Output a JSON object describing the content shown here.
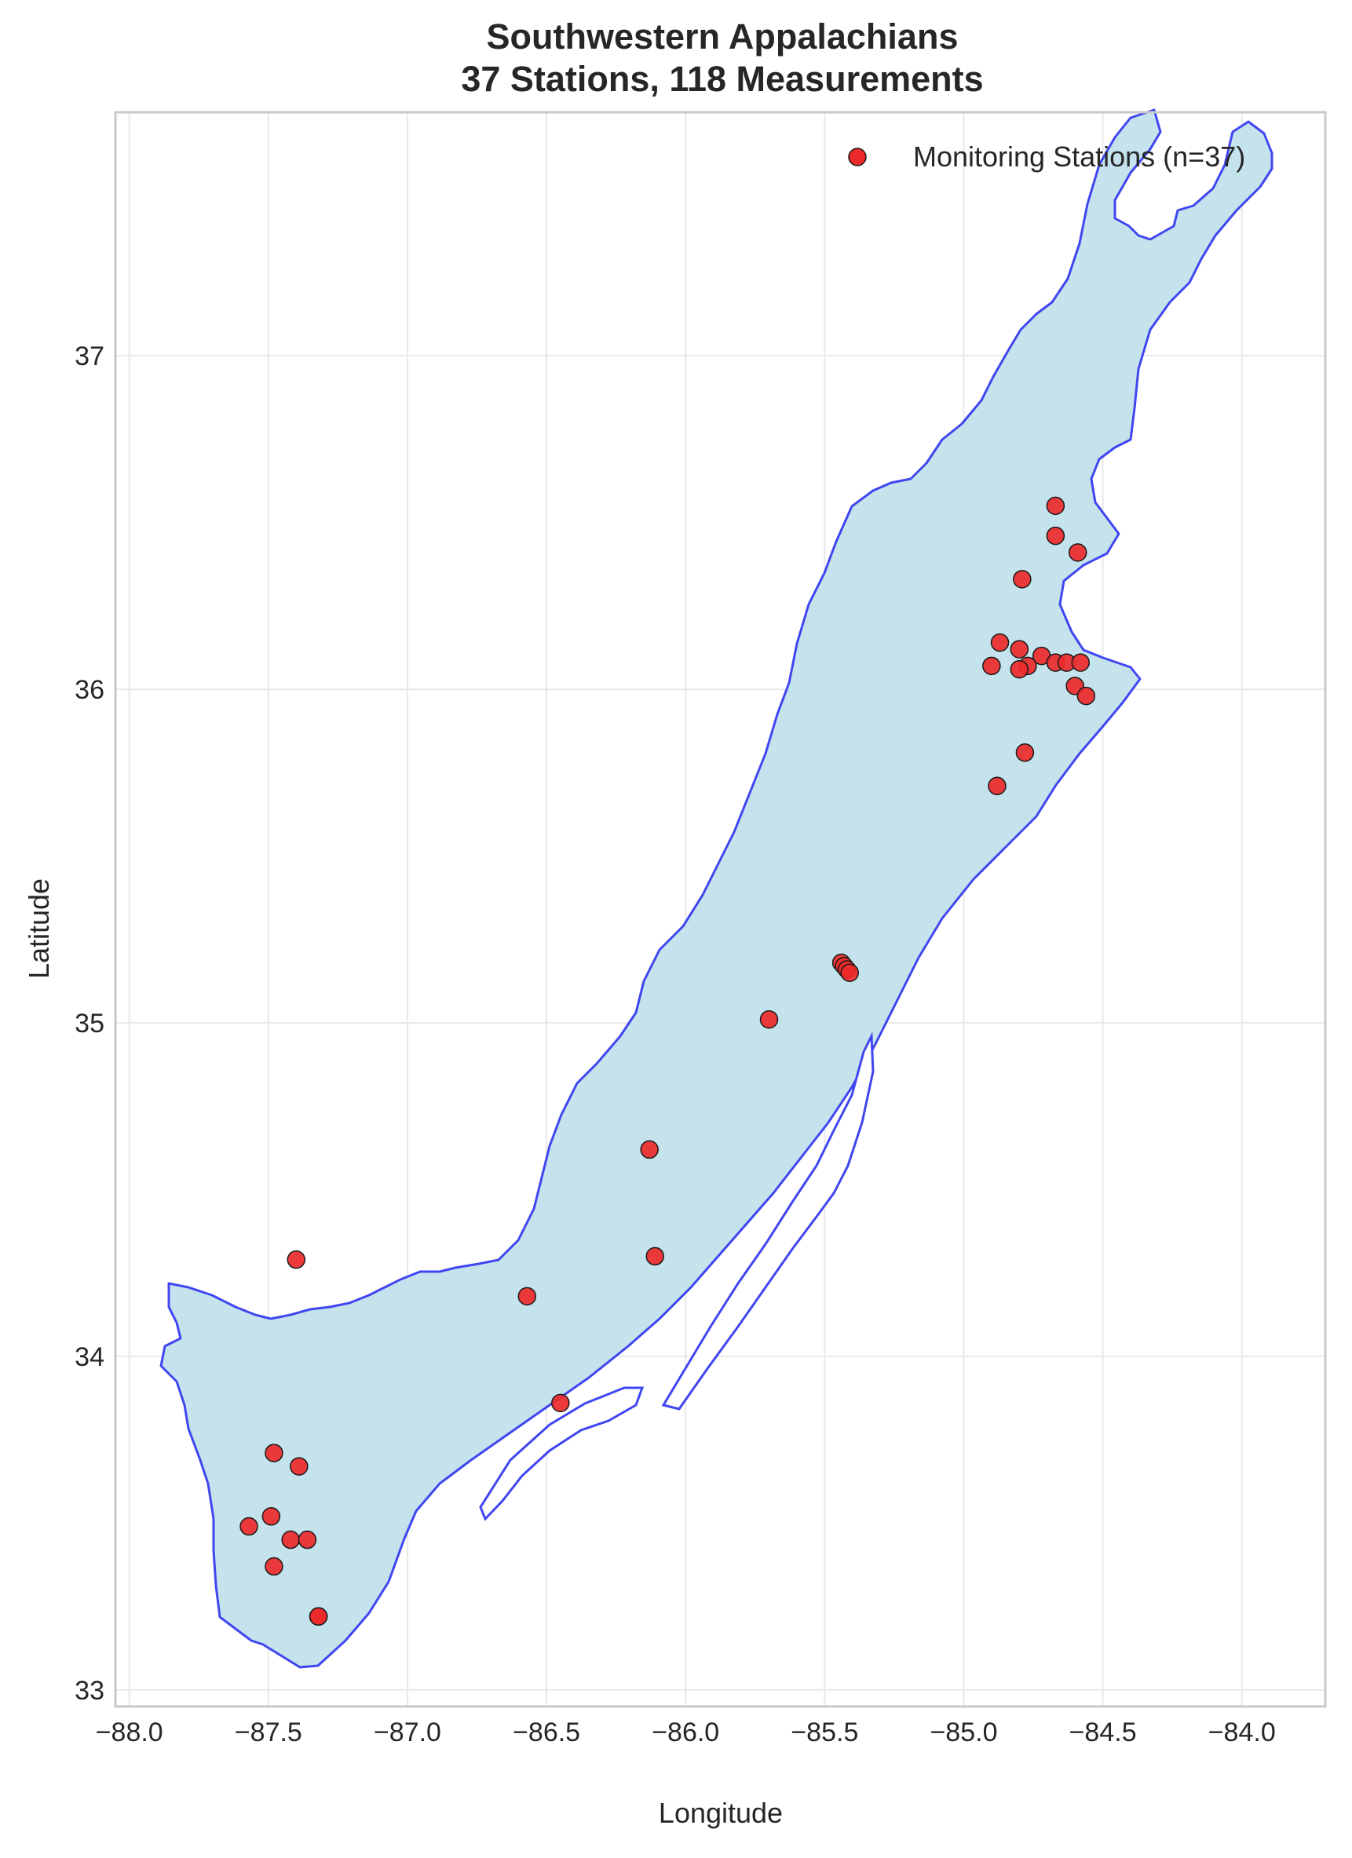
{
  "title": {
    "line1": "Southwestern Appalachians",
    "line2": "37 Stations, 118 Measurements"
  },
  "axes": {
    "xlabel": "Longitude",
    "ylabel": "Latitude",
    "xlim": [
      -88.05,
      -83.7
    ],
    "ylim": [
      32.95,
      37.73
    ],
    "xticks": [
      "−88.0",
      "−87.5",
      "−87.0",
      "−86.5",
      "−86.0",
      "−85.5",
      "−85.0",
      "−84.5",
      "−84.0"
    ],
    "yticks": [
      "33",
      "34",
      "35",
      "36",
      "37"
    ],
    "grid": true
  },
  "legend": {
    "label": "Monitoring Stations (n=37)",
    "placement": "top-right"
  },
  "colors": {
    "region_fill": "#c5e3ec",
    "region_edge": "#4046f0",
    "marker_fill": "#ec2a2a",
    "marker_edge": "#1a1a1a",
    "grid": "#e8e8e8",
    "frame": "#c8c8c8"
  },
  "chart_data": {
    "type": "scatter",
    "series": [
      {
        "name": "Monitoring Stations (n=37)",
        "points": [
          [
            -84.67,
            36.55
          ],
          [
            -84.67,
            36.46
          ],
          [
            -84.59,
            36.41
          ],
          [
            -84.79,
            36.33
          ],
          [
            -84.87,
            36.14
          ],
          [
            -84.8,
            36.12
          ],
          [
            -84.72,
            36.1
          ],
          [
            -84.67,
            36.08
          ],
          [
            -84.63,
            36.08
          ],
          [
            -84.58,
            36.08
          ],
          [
            -84.9,
            36.07
          ],
          [
            -84.77,
            36.07
          ],
          [
            -84.8,
            36.06
          ],
          [
            -84.6,
            36.01
          ],
          [
            -84.56,
            35.98
          ],
          [
            -84.78,
            35.81
          ],
          [
            -84.88,
            35.71
          ],
          [
            -85.44,
            35.18
          ],
          [
            -85.43,
            35.17
          ],
          [
            -85.42,
            35.16
          ],
          [
            -85.41,
            35.15
          ],
          [
            -85.7,
            35.01
          ],
          [
            -86.13,
            34.62
          ],
          [
            -86.11,
            34.3
          ],
          [
            -86.57,
            34.18
          ],
          [
            -86.45,
            33.86
          ],
          [
            -87.4,
            34.29
          ],
          [
            -87.48,
            33.71
          ],
          [
            -87.39,
            33.67
          ],
          [
            -87.49,
            33.52
          ],
          [
            -87.57,
            33.49
          ],
          [
            -87.42,
            33.45
          ],
          [
            -87.36,
            33.45
          ],
          [
            -87.48,
            33.37
          ],
          [
            -87.32,
            33.22
          ],
          [
            -87.32,
            33.22
          ],
          [
            -87.32,
            33.22
          ]
        ]
      }
    ]
  }
}
